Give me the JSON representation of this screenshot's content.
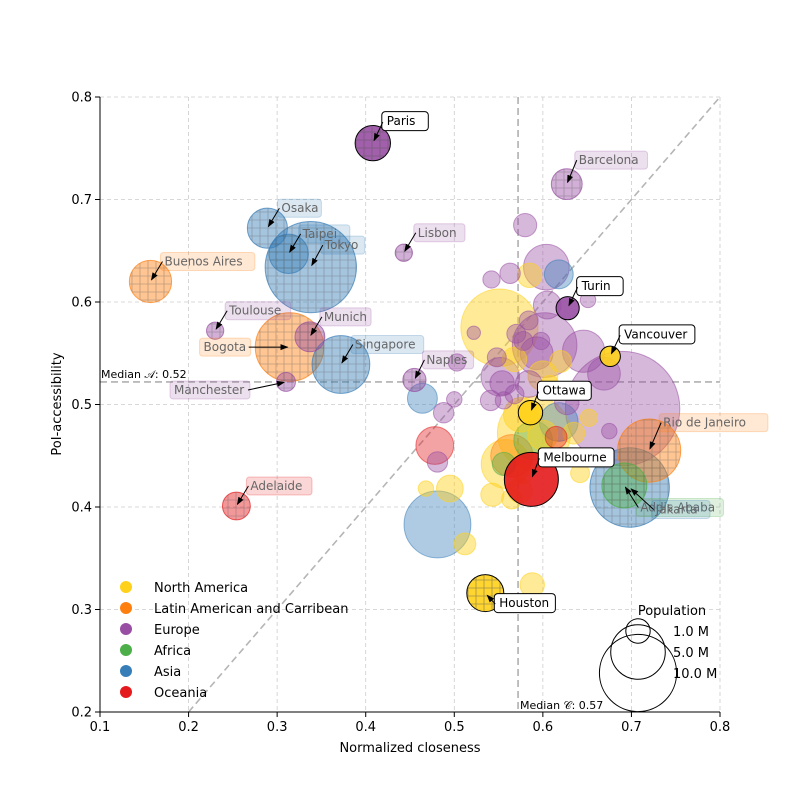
{
  "chart_data": {
    "type": "scatter",
    "xlabel": "Normalized closeness",
    "ylabel": "PoI-accessibility",
    "xlim": [
      0.1,
      0.8
    ],
    "ylim": [
      0.2,
      0.8
    ],
    "xticks": [
      "0.1",
      "0.2",
      "0.3",
      "0.4",
      "0.5",
      "0.6",
      "0.7",
      "0.8"
    ],
    "yticks": [
      "0.2",
      "0.3",
      "0.4",
      "0.5",
      "0.6",
      "0.7",
      "0.8"
    ],
    "grid": true,
    "diagonal": "y = x",
    "median_x": {
      "value": 0.572,
      "label": "Median 𝒞: 0.57"
    },
    "median_y": {
      "value": 0.522,
      "label": "Median 𝒜: 0.52"
    },
    "legend": {
      "placement": "bottom-left",
      "entries": [
        {
          "key": "na",
          "label": "North America",
          "color": "#FFD11A"
        },
        {
          "key": "la",
          "label": "Latin American and Carribean",
          "color": "#FF7F0E"
        },
        {
          "key": "eu",
          "label": "Europe",
          "color": "#984EA3"
        },
        {
          "key": "af",
          "label": "Africa",
          "color": "#4DAF4A"
        },
        {
          "key": "as",
          "label": "Asia",
          "color": "#377EB8"
        },
        {
          "key": "oc",
          "label": "Oceania",
          "color": "#E41A1C"
        }
      ]
    },
    "size_legend": {
      "title": "Population",
      "placement": "bottom-right",
      "entries": [
        {
          "label": "1.0 M",
          "population_m": 1.0
        },
        {
          "label": "5.0 M",
          "population_m": 5.0
        },
        {
          "label": "10.0 M",
          "population_m": 10.0
        }
      ]
    },
    "highlighted": [
      {
        "name": "Paris",
        "region": "eu",
        "x": 0.408,
        "y": 0.755,
        "pop": 2.1
      },
      {
        "name": "Turin",
        "region": "eu",
        "x": 0.628,
        "y": 0.594,
        "pop": 0.9
      },
      {
        "name": "Vancouver",
        "region": "na",
        "x": 0.676,
        "y": 0.547,
        "pop": 0.7
      },
      {
        "name": "Ottawa",
        "region": "na",
        "x": 0.586,
        "y": 0.492,
        "pop": 1.0
      },
      {
        "name": "Melbourne",
        "region": "oc",
        "x": 0.587,
        "y": 0.427,
        "pop": 4.9
      },
      {
        "name": "Houston",
        "region": "na",
        "x": 0.535,
        "y": 0.316,
        "pop": 2.3
      }
    ],
    "labeled": [
      {
        "name": "Barcelona",
        "region": "eu",
        "x": 0.627,
        "y": 0.715,
        "pop": 1.6
      },
      {
        "name": "Osaka",
        "region": "as",
        "x": 0.289,
        "y": 0.672,
        "pop": 2.7
      },
      {
        "name": "Taipei",
        "region": "as",
        "x": 0.313,
        "y": 0.647,
        "pop": 2.6
      },
      {
        "name": "Tokyo",
        "region": "as",
        "x": 0.338,
        "y": 0.634,
        "pop": 14.0
      },
      {
        "name": "Lisbon",
        "region": "eu",
        "x": 0.443,
        "y": 0.648,
        "pop": 0.5
      },
      {
        "name": "Buenos Aires",
        "region": "la",
        "x": 0.157,
        "y": 0.62,
        "pop": 3.0
      },
      {
        "name": "Toulouse",
        "region": "eu",
        "x": 0.23,
        "y": 0.572,
        "pop": 0.5
      },
      {
        "name": "Munich",
        "region": "eu",
        "x": 0.337,
        "y": 0.566,
        "pop": 1.5
      },
      {
        "name": "Bogota",
        "region": "la",
        "x": 0.314,
        "y": 0.556,
        "pop": 7.9
      },
      {
        "name": "Singapore",
        "region": "as",
        "x": 0.372,
        "y": 0.539,
        "pop": 5.6
      },
      {
        "name": "Naples",
        "region": "eu",
        "x": 0.455,
        "y": 0.524,
        "pop": 0.9
      },
      {
        "name": "Manchester",
        "region": "eu",
        "x": 0.31,
        "y": 0.522,
        "pop": 0.6
      },
      {
        "name": "Rio de Janeiro",
        "region": "la",
        "x": 0.72,
        "y": 0.455,
        "pop": 6.7
      },
      {
        "name": "Addis Ababa",
        "region": "af",
        "x": 0.692,
        "y": 0.421,
        "pop": 3.4
      },
      {
        "name": "Jakarta",
        "region": "as",
        "x": 0.698,
        "y": 0.419,
        "pop": 10.6
      },
      {
        "name": "Adelaide",
        "region": "oc",
        "x": 0.254,
        "y": 0.401,
        "pop": 1.3
      }
    ],
    "others": [
      {
        "region": "na",
        "x": 0.551,
        "y": 0.575,
        "pop": 10.0
      },
      {
        "region": "na",
        "x": 0.585,
        "y": 0.626,
        "pop": 1.0
      },
      {
        "region": "na",
        "x": 0.6,
        "y": 0.528,
        "pop": 1.5
      },
      {
        "region": "na",
        "x": 0.568,
        "y": 0.544,
        "pop": 1.0
      },
      {
        "region": "na",
        "x": 0.62,
        "y": 0.542,
        "pop": 0.8
      },
      {
        "region": "na",
        "x": 0.59,
        "y": 0.472,
        "pop": 9.0
      },
      {
        "region": "na",
        "x": 0.575,
        "y": 0.49,
        "pop": 2.0
      },
      {
        "region": "na",
        "x": 0.558,
        "y": 0.442,
        "pop": 4.0
      },
      {
        "region": "na",
        "x": 0.6,
        "y": 0.47,
        "pop": 1.5
      },
      {
        "region": "na",
        "x": 0.635,
        "y": 0.472,
        "pop": 0.8
      },
      {
        "region": "na",
        "x": 0.652,
        "y": 0.487,
        "pop": 0.5
      },
      {
        "region": "na",
        "x": 0.495,
        "y": 0.418,
        "pop": 1.2
      },
      {
        "region": "na",
        "x": 0.543,
        "y": 0.412,
        "pop": 0.9
      },
      {
        "region": "na",
        "x": 0.565,
        "y": 0.408,
        "pop": 0.7
      },
      {
        "region": "na",
        "x": 0.574,
        "y": 0.416,
        "pop": 1.0
      },
      {
        "region": "na",
        "x": 0.578,
        "y": 0.432,
        "pop": 0.6
      },
      {
        "region": "na",
        "x": 0.642,
        "y": 0.433,
        "pop": 0.6
      },
      {
        "region": "na",
        "x": 0.468,
        "y": 0.418,
        "pop": 0.4
      },
      {
        "region": "na",
        "x": 0.512,
        "y": 0.364,
        "pop": 0.8
      },
      {
        "region": "na",
        "x": 0.588,
        "y": 0.324,
        "pop": 1.0
      },
      {
        "region": "na",
        "x": 0.608,
        "y": 0.52,
        "pop": 0.5
      },
      {
        "region": "la",
        "x": 0.565,
        "y": 0.45,
        "pop": 3.0
      },
      {
        "region": "eu",
        "x": 0.58,
        "y": 0.675,
        "pop": 0.9
      },
      {
        "region": "eu",
        "x": 0.604,
        "y": 0.634,
        "pop": 3.5
      },
      {
        "region": "eu",
        "x": 0.605,
        "y": 0.597,
        "pop": 1.3
      },
      {
        "region": "eu",
        "x": 0.602,
        "y": 0.558,
        "pop": 7.0
      },
      {
        "region": "eu",
        "x": 0.593,
        "y": 0.55,
        "pop": 1.8
      },
      {
        "region": "eu",
        "x": 0.646,
        "y": 0.552,
        "pop": 3.0
      },
      {
        "region": "eu",
        "x": 0.69,
        "y": 0.496,
        "pop": 22.0
      },
      {
        "region": "eu",
        "x": 0.669,
        "y": 0.53,
        "pop": 1.8
      },
      {
        "region": "eu",
        "x": 0.552,
        "y": 0.527,
        "pop": 2.5
      },
      {
        "region": "eu",
        "x": 0.554,
        "y": 0.521,
        "pop": 1.0
      },
      {
        "region": "eu",
        "x": 0.584,
        "y": 0.52,
        "pop": 1.2
      },
      {
        "region": "eu",
        "x": 0.584,
        "y": 0.582,
        "pop": 0.6
      },
      {
        "region": "eu",
        "x": 0.57,
        "y": 0.569,
        "pop": 0.6
      },
      {
        "region": "eu",
        "x": 0.578,
        "y": 0.562,
        "pop": 0.6
      },
      {
        "region": "eu",
        "x": 0.548,
        "y": 0.546,
        "pop": 0.6
      },
      {
        "region": "eu",
        "x": 0.542,
        "y": 0.622,
        "pop": 0.5
      },
      {
        "region": "eu",
        "x": 0.563,
        "y": 0.628,
        "pop": 0.7
      },
      {
        "region": "eu",
        "x": 0.522,
        "y": 0.57,
        "pop": 0.3
      },
      {
        "region": "eu",
        "x": 0.568,
        "y": 0.51,
        "pop": 0.6
      },
      {
        "region": "eu",
        "x": 0.556,
        "y": 0.504,
        "pop": 0.5
      },
      {
        "region": "eu",
        "x": 0.541,
        "y": 0.504,
        "pop": 0.7
      },
      {
        "region": "eu",
        "x": 0.5,
        "y": 0.505,
        "pop": 0.4
      },
      {
        "region": "eu",
        "x": 0.488,
        "y": 0.492,
        "pop": 0.7
      },
      {
        "region": "eu",
        "x": 0.481,
        "y": 0.444,
        "pop": 0.7
      },
      {
        "region": "eu",
        "x": 0.627,
        "y": 0.502,
        "pop": 1.0
      },
      {
        "region": "eu",
        "x": 0.651,
        "y": 0.602,
        "pop": 0.4
      },
      {
        "region": "eu",
        "x": 0.675,
        "y": 0.474,
        "pop": 0.4
      },
      {
        "region": "eu",
        "x": 0.503,
        "y": 0.541,
        "pop": 0.5
      },
      {
        "region": "eu",
        "x": 0.598,
        "y": 0.562,
        "pop": 0.5
      },
      {
        "region": "af",
        "x": 0.589,
        "y": 0.465,
        "pop": 2.5
      },
      {
        "region": "af",
        "x": 0.556,
        "y": 0.442,
        "pop": 0.9
      },
      {
        "region": "as",
        "x": 0.481,
        "y": 0.383,
        "pop": 7.5
      },
      {
        "region": "as",
        "x": 0.464,
        "y": 0.506,
        "pop": 1.5
      },
      {
        "region": "as",
        "x": 0.618,
        "y": 0.483,
        "pop": 2.5
      },
      {
        "region": "as",
        "x": 0.618,
        "y": 0.627,
        "pop": 1.4
      },
      {
        "region": "oc",
        "x": 0.478,
        "y": 0.46,
        "pop": 2.4
      },
      {
        "region": "oc",
        "x": 0.615,
        "y": 0.468,
        "pop": 0.8
      }
    ]
  }
}
